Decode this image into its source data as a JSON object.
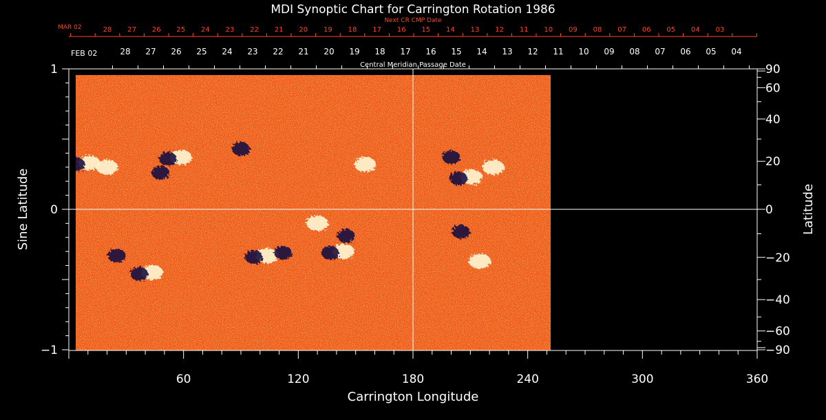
{
  "chart_data": {
    "type": "heatmap",
    "title": "MDI Synoptic Chart for Carrington Rotation 1986",
    "xlabel": "Carrington Longitude",
    "ylabel_left": "Sine Latitude",
    "ylabel_right": "Latitude",
    "xlim": [
      0,
      360
    ],
    "ylim": [
      -1,
      1
    ],
    "x_ticks": [
      60,
      120,
      180,
      240,
      300,
      360
    ],
    "y_ticks_left": [
      -1,
      0,
      1
    ],
    "y_ticks_right": [
      -90,
      -60,
      -40,
      -20,
      0,
      20,
      40,
      60,
      90
    ],
    "data_coverage_longitude": [
      0,
      252
    ],
    "cmp_axis_title": "Central Meridian Passage Date",
    "cmp_start_label": "FEB 02",
    "cmp_dates": [
      "28",
      "27",
      "26",
      "25",
      "24",
      "23",
      "22",
      "21",
      "20",
      "19",
      "18",
      "17",
      "16",
      "15",
      "14",
      "13",
      "12",
      "11",
      "10",
      "09",
      "08",
      "07",
      "06",
      "05",
      "04"
    ],
    "next_cr_title": "Next CR CMP Date",
    "next_cr_start_label": "MAR 02",
    "next_cr_dates": [
      "28",
      "27",
      "26",
      "25",
      "24",
      "23",
      "22",
      "21",
      "20",
      "19",
      "18",
      "17",
      "16",
      "15",
      "14",
      "13",
      "12",
      "11",
      "10",
      "09",
      "08",
      "07",
      "06",
      "05",
      "04",
      "03"
    ],
    "active_regions": [
      {
        "lon": 7,
        "sinlat": 0.33,
        "polarity": "bipole"
      },
      {
        "lon": 20,
        "sinlat": 0.3,
        "polarity": "positive"
      },
      {
        "lon": 55,
        "sinlat": 0.37,
        "polarity": "bipole"
      },
      {
        "lon": 48,
        "sinlat": 0.27,
        "polarity": "negative"
      },
      {
        "lon": 90,
        "sinlat": 0.44,
        "polarity": "negative"
      },
      {
        "lon": 155,
        "sinlat": 0.32,
        "polarity": "positive"
      },
      {
        "lon": 200,
        "sinlat": 0.38,
        "polarity": "negative"
      },
      {
        "lon": 207,
        "sinlat": 0.23,
        "polarity": "bipole"
      },
      {
        "lon": 222,
        "sinlat": 0.3,
        "polarity": "positive"
      },
      {
        "lon": 100,
        "sinlat": -0.33,
        "polarity": "bipole"
      },
      {
        "lon": 112,
        "sinlat": -0.3,
        "polarity": "negative"
      },
      {
        "lon": 140,
        "sinlat": -0.3,
        "polarity": "bipole"
      },
      {
        "lon": 145,
        "sinlat": -0.18,
        "polarity": "negative"
      },
      {
        "lon": 25,
        "sinlat": -0.32,
        "polarity": "negative"
      },
      {
        "lon": 40,
        "sinlat": -0.45,
        "polarity": "bipole"
      },
      {
        "lon": 130,
        "sinlat": -0.1,
        "polarity": "positive"
      },
      {
        "lon": 205,
        "sinlat": -0.15,
        "polarity": "negative"
      },
      {
        "lon": 215,
        "sinlat": -0.37,
        "polarity": "positive"
      }
    ]
  },
  "colors": {
    "background": "#000000",
    "frame": "#ffffff",
    "next_cr": "#ff4422",
    "field_base": "#f05a14",
    "field_positive": "#fff4d0",
    "field_negative": "#1a1040"
  }
}
